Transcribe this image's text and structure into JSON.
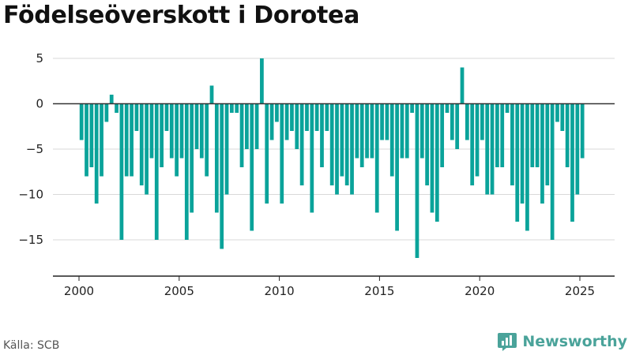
{
  "title": "Födelseöverskott i Dorotea",
  "source": "Källa: SCB",
  "brand": {
    "name": "Newsworthy",
    "icon": "newsworthy-logo-icon"
  },
  "colors": {
    "bar": "#0aa39a",
    "grid": "#d9d9d9",
    "zero_line": "#333333",
    "axis": "#222222",
    "brand": "#4aa39a"
  },
  "chart_data": {
    "type": "bar",
    "title": "Födelseöverskott i Dorotea",
    "xlabel": "",
    "ylabel": "",
    "xlim": [
      1999.3,
      2026.2
    ],
    "ylim": [
      -19,
      5.5
    ],
    "grid": true,
    "x_ticks": [
      {
        "value": 2000,
        "label": "2000"
      },
      {
        "value": 2005,
        "label": "2005"
      },
      {
        "value": 2010,
        "label": "2010"
      },
      {
        "value": 2015,
        "label": "2015"
      },
      {
        "value": 2020,
        "label": "2020"
      },
      {
        "value": 2025,
        "label": "2025"
      }
    ],
    "y_ticks": [
      {
        "value": 5,
        "label": "5"
      },
      {
        "value": 0,
        "label": "0"
      },
      {
        "value": -5,
        "label": "−5"
      },
      {
        "value": -10,
        "label": "−10"
      },
      {
        "value": -15,
        "label": "−15"
      }
    ],
    "start_year": 2000,
    "periods_per_year": 4,
    "values": [
      -4,
      -8,
      -7,
      -11,
      -8,
      -2,
      1,
      -1,
      -15,
      -8,
      -8,
      -3,
      -9,
      -10,
      -6,
      -15,
      -7,
      -3,
      -6,
      -8,
      -6,
      -15,
      -12,
      -5,
      -6,
      -8,
      2,
      -12,
      -16,
      -10,
      -1,
      -1,
      -7,
      -5,
      -14,
      -5,
      5,
      -11,
      -4,
      -2,
      -11,
      -4,
      -3,
      -5,
      -9,
      -3,
      -12,
      -3,
      -7,
      -3,
      -9,
      -10,
      -8,
      -9,
      -10,
      -6,
      -7,
      -6,
      -6,
      -12,
      -4,
      -4,
      -8,
      -14,
      -6,
      -6,
      -1,
      -17,
      -6,
      -9,
      -12,
      -13,
      -7,
      -1,
      -4,
      -5,
      4,
      -4,
      -9,
      -8,
      -4,
      -10,
      -10,
      -7,
      -7,
      -1,
      -9,
      -13,
      -11,
      -14,
      -7,
      -7,
      -11,
      -9,
      -15,
      -2,
      -3,
      -7,
      -13,
      -10,
      -6
    ]
  }
}
